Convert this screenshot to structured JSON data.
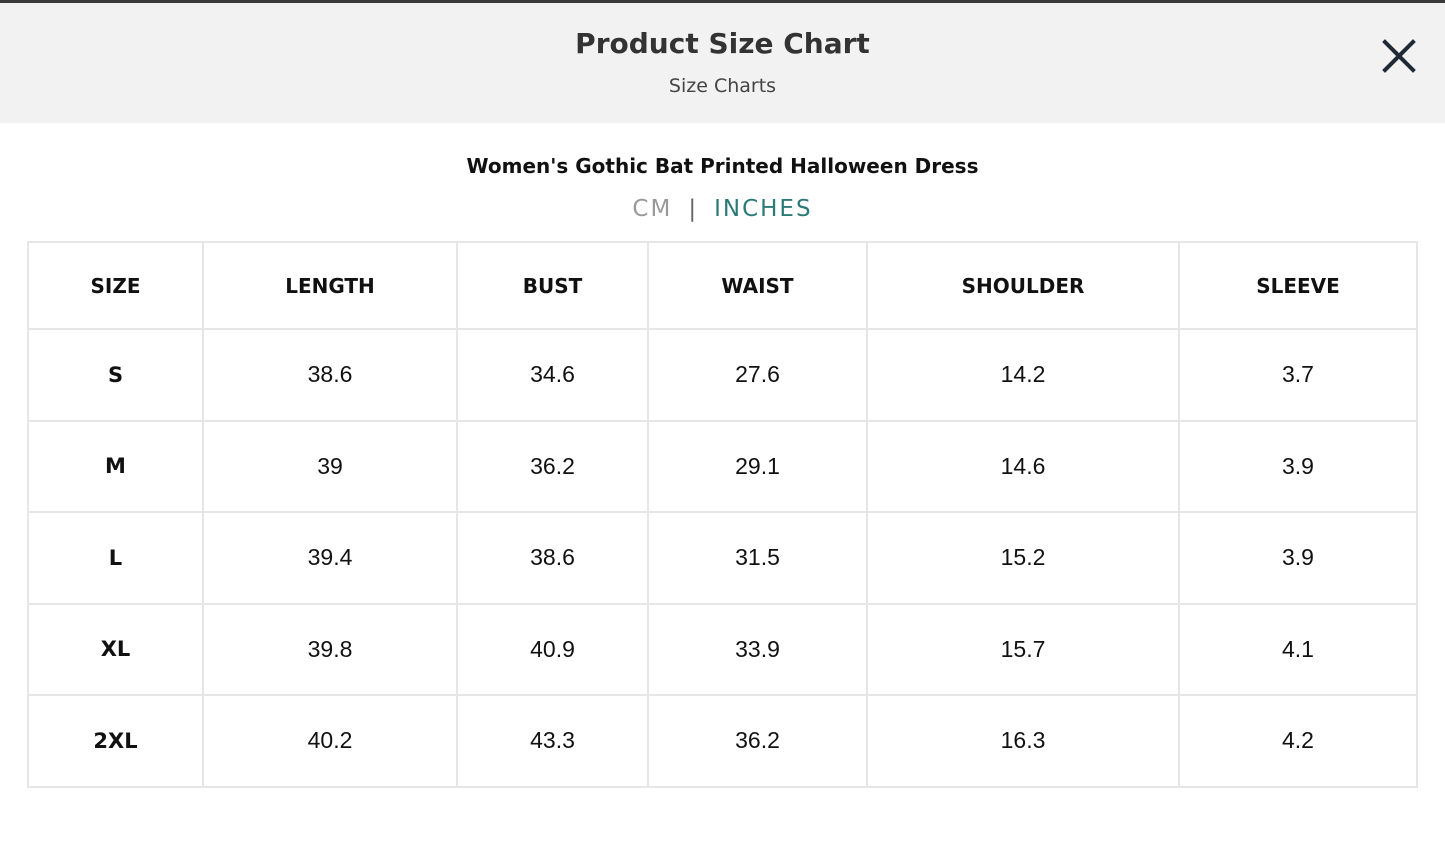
{
  "header": {
    "title": "Product Size Chart",
    "subtitle": "Size Charts"
  },
  "product_title": "Women's Gothic Bat Printed Halloween Dress",
  "units": {
    "options": [
      "CM",
      "INCHES"
    ],
    "separator": "|",
    "selected": 1
  },
  "table": {
    "columns": [
      "SIZE",
      "LENGTH",
      "BUST",
      "WAIST",
      "SHOULDER",
      "SLEEVE"
    ],
    "rows": [
      [
        "S",
        "38.6",
        "34.6",
        "27.6",
        "14.2",
        "3.7"
      ],
      [
        "M",
        "39",
        "36.2",
        "29.1",
        "14.6",
        "3.9"
      ],
      [
        "L",
        "39.4",
        "38.6",
        "31.5",
        "15.2",
        "3.9"
      ],
      [
        "XL",
        "39.8",
        "40.9",
        "33.9",
        "15.7",
        "4.1"
      ],
      [
        "2XL",
        "40.2",
        "43.3",
        "36.2",
        "16.3",
        "4.2"
      ]
    ]
  }
}
